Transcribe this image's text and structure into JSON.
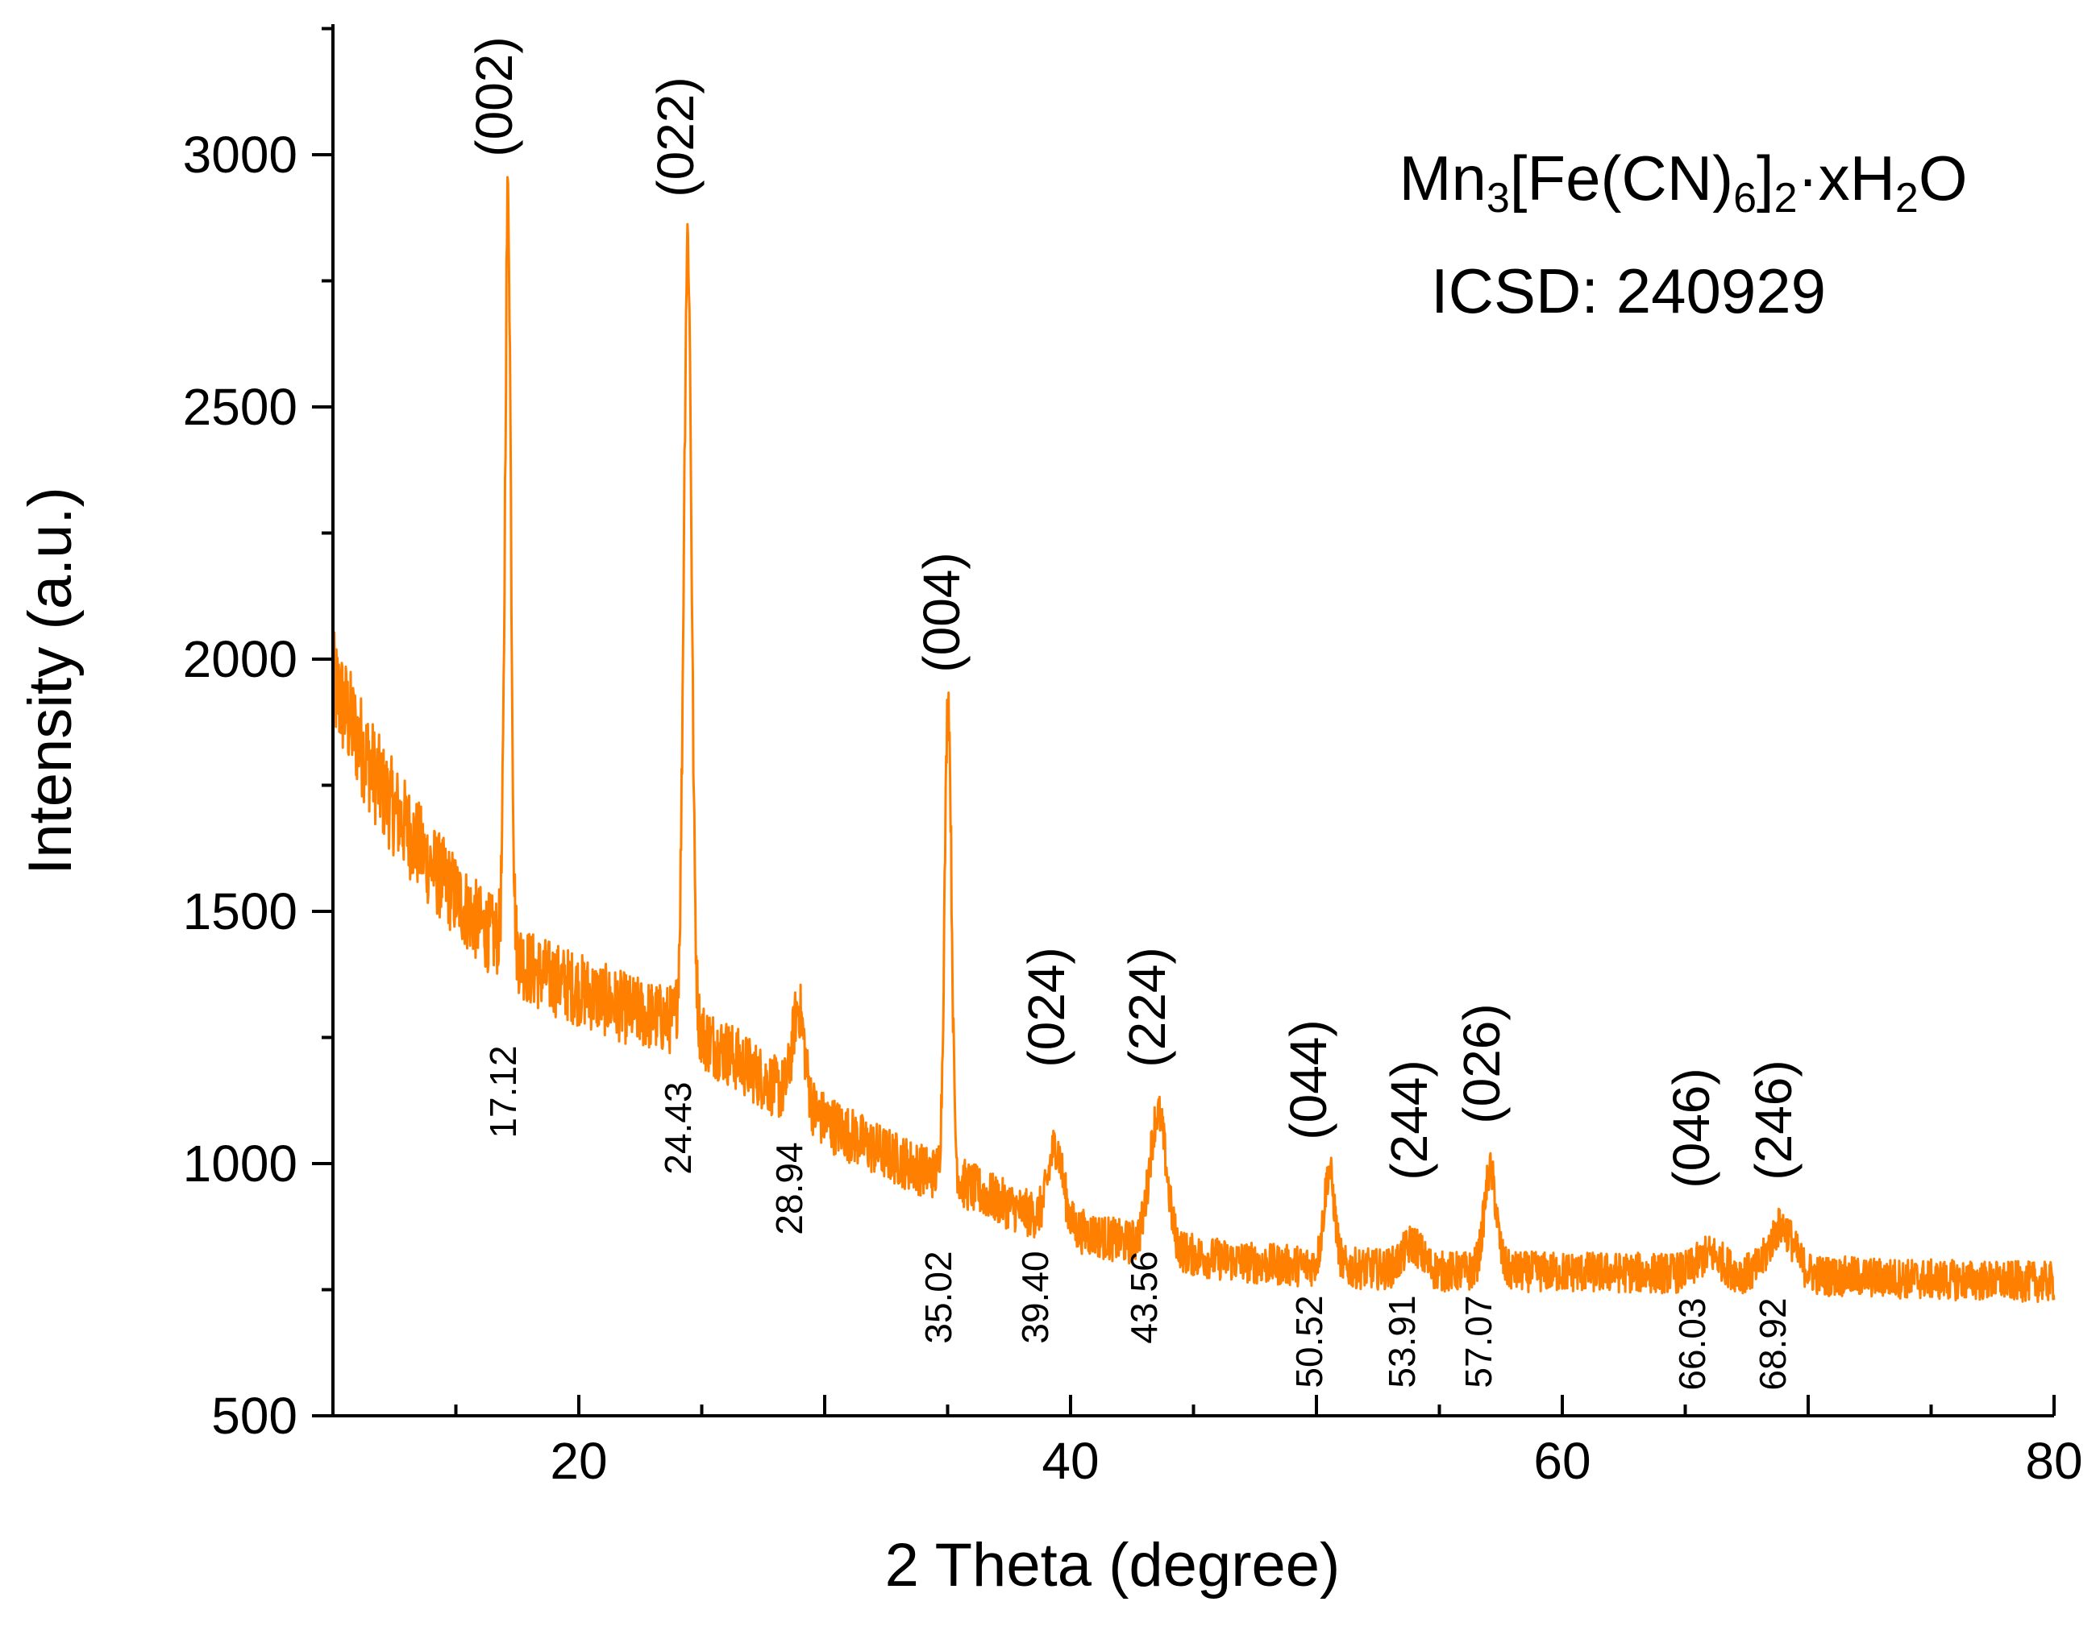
{
  "chart_data": {
    "type": "line",
    "xlabel": "2 Theta (degree)",
    "ylabel": "Intensity (a.u.)",
    "xlim": [
      10,
      80
    ],
    "ylim": [
      500,
      3250
    ],
    "xticks": [
      20,
      40,
      60,
      80
    ],
    "yticks": [
      500,
      1000,
      1500,
      2000,
      2500,
      3000
    ],
    "grid": false,
    "color": "#FF8000",
    "annotation": {
      "formula_base": "Mn",
      "formula_sub1": "3",
      "formula_mid": "[Fe(CN)",
      "formula_sub2": "6",
      "formula_mid2": "]",
      "formula_sub3": "2",
      "formula_mid3": "·xH",
      "formula_sub4": "2",
      "formula_end": "O",
      "icsd": "ICSD: 240929"
    },
    "background": [
      {
        "x": 10,
        "y": 1950
      },
      {
        "x": 12,
        "y": 1740
      },
      {
        "x": 14,
        "y": 1590
      },
      {
        "x": 16,
        "y": 1470
      },
      {
        "x": 18,
        "y": 1385
      },
      {
        "x": 20,
        "y": 1345
      },
      {
        "x": 22,
        "y": 1305
      },
      {
        "x": 24,
        "y": 1275
      },
      {
        "x": 26,
        "y": 1220
      },
      {
        "x": 28,
        "y": 1150
      },
      {
        "x": 30,
        "y": 1085
      },
      {
        "x": 32,
        "y": 1030
      },
      {
        "x": 34,
        "y": 985
      },
      {
        "x": 36,
        "y": 950
      },
      {
        "x": 38,
        "y": 905
      },
      {
        "x": 40,
        "y": 870
      },
      {
        "x": 42,
        "y": 845
      },
      {
        "x": 44,
        "y": 825
      },
      {
        "x": 46,
        "y": 810
      },
      {
        "x": 48,
        "y": 800
      },
      {
        "x": 50,
        "y": 795
      },
      {
        "x": 55,
        "y": 785
      },
      {
        "x": 60,
        "y": 785
      },
      {
        "x": 65,
        "y": 782
      },
      {
        "x": 70,
        "y": 778
      },
      {
        "x": 75,
        "y": 770
      },
      {
        "x": 80,
        "y": 765
      }
    ],
    "peaks": [
      {
        "hkl": "(002)",
        "position": "17.12",
        "x": 17.12,
        "y": 2920,
        "width": 0.12
      },
      {
        "hkl": "(022)",
        "position": "24.43",
        "x": 24.43,
        "y": 2840,
        "width": 0.16
      },
      {
        "hkl": "",
        "position": "28.94",
        "x": 28.94,
        "y": 1310,
        "width": 0.25
      },
      {
        "hkl": "(004)",
        "position": "35.02",
        "x": 35.02,
        "y": 1930,
        "width": 0.14
      },
      {
        "hkl": "(024)",
        "position": "39.40",
        "x": 39.4,
        "y": 1035,
        "width": 0.3
      },
      {
        "hkl": "(224)",
        "position": "43.56",
        "x": 43.56,
        "y": 1100,
        "width": 0.35
      },
      {
        "hkl": "(044)",
        "position": "50.52",
        "x": 50.52,
        "y": 985,
        "width": 0.22
      },
      {
        "hkl": "(244)",
        "position": "53.91",
        "x": 53.91,
        "y": 840,
        "width": 0.4
      },
      {
        "hkl": "(026)",
        "position": "57.07",
        "x": 57.07,
        "y": 985,
        "width": 0.25
      },
      {
        "hkl": "(046)",
        "position": "66.03",
        "x": 66.03,
        "y": 820,
        "width": 0.5
      },
      {
        "hkl": "(246)",
        "position": "68.92",
        "x": 68.92,
        "y": 875,
        "width": 0.5
      }
    ]
  }
}
